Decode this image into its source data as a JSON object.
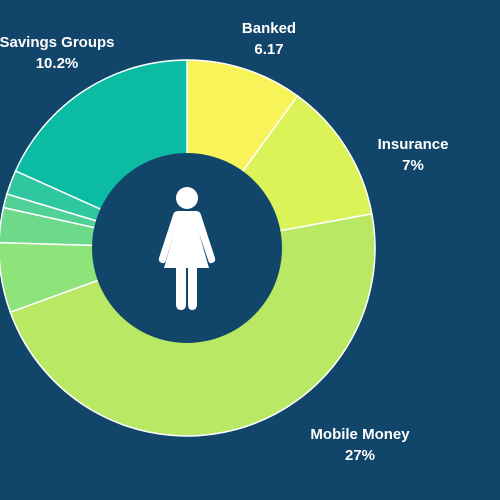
{
  "colors": {
    "background": "#114569",
    "hole": "#114569",
    "icon": "#ffffff"
  },
  "center_icon": "woman-icon",
  "chart_data": {
    "type": "pie",
    "donut": true,
    "series": [
      {
        "slices": [
          {
            "name": "Banked",
            "value": 11.0,
            "color": "#f7f359"
          },
          {
            "name": "Insurance",
            "value": 13.3,
            "color": "#dbf359"
          },
          {
            "name": "Mobile Money",
            "value": 52.1,
            "color": "#b9e864"
          },
          {
            "name": "",
            "value": 6.6,
            "color": "#8ee47a"
          },
          {
            "name": "",
            "value": 3.3,
            "color": "#6dd98a"
          },
          {
            "name": "",
            "value": 1.3,
            "color": "#51d097"
          },
          {
            "name": "",
            "value": 2.3,
            "color": "#2fc79f"
          },
          {
            "name": "Savings Groups",
            "value": 20.1,
            "color": "#0bbba4"
          }
        ]
      }
    ],
    "labels": [
      {
        "name": "Banked",
        "value": "6.17"
      },
      {
        "name": "Insurance",
        "value": "7%"
      },
      {
        "name": "Mobile Money",
        "value": "27%"
      },
      {
        "name": "Savings Groups",
        "value": "10.2%"
      }
    ]
  }
}
